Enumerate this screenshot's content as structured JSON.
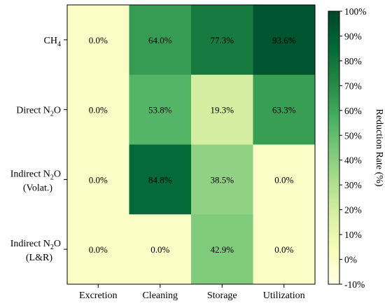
{
  "chart_data": {
    "type": "heatmap",
    "title": "",
    "xlabel": "",
    "ylabel": "",
    "x_categories": [
      "Excretion",
      "Cleaning",
      "Storage",
      "Utilization"
    ],
    "y_categories": [
      {
        "main": "CH",
        "sub": "4",
        "rest": "",
        "line2": ""
      },
      {
        "main": "Direct N",
        "sub": "2",
        "rest": "O",
        "line2": ""
      },
      {
        "main": "Indirect N",
        "sub": "2",
        "rest": "O",
        "line2": "(Volat.)"
      },
      {
        "main": "Indirect N",
        "sub": "2",
        "rest": "O",
        "line2": "(L&R)"
      }
    ],
    "values": [
      [
        0.0,
        64.0,
        77.3,
        93.6
      ],
      [
        0.0,
        53.8,
        19.3,
        63.3
      ],
      [
        0.0,
        84.8,
        38.5,
        0.0
      ],
      [
        0.0,
        0.0,
        42.9,
        0.0
      ]
    ],
    "value_labels": [
      [
        "0.0%",
        "64.0%",
        "77.3%",
        "93.6%"
      ],
      [
        "0.0%",
        "53.8%",
        "19.3%",
        "63.3%"
      ],
      [
        "0.0%",
        "84.8%",
        "38.5%",
        "0.0%"
      ],
      [
        "0.0%",
        "0.0%",
        "42.9%",
        "0.0%"
      ]
    ],
    "colorbar": {
      "label": "Reduction Rate (%)",
      "range": [
        -10,
        100
      ],
      "ticks": [
        -10,
        0,
        10,
        20,
        30,
        40,
        50,
        60,
        70,
        80,
        90,
        100
      ],
      "tick_labels": [
        "-10%",
        "0%",
        "10%",
        "20%",
        "30%",
        "40%",
        "50%",
        "60%",
        "70%",
        "80%",
        "90%",
        "100%"
      ],
      "colormap": "YlGn",
      "colors": [
        "#ffffe5",
        "#f7fcb9",
        "#d9f0a3",
        "#addd8e",
        "#78c679",
        "#41ab5d",
        "#238443",
        "#006837",
        "#004529"
      ]
    },
    "grid": false
  }
}
